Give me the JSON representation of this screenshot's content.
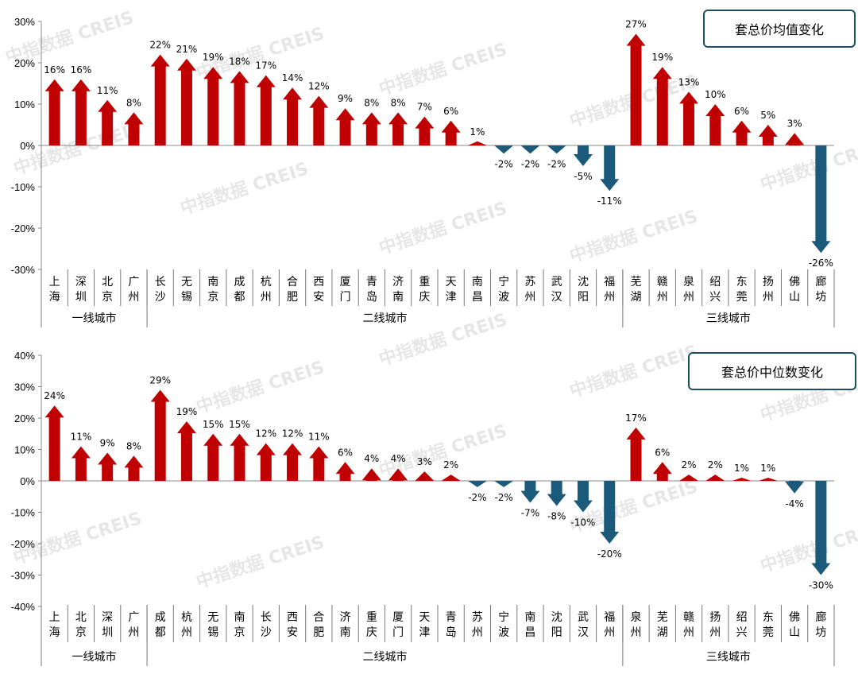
{
  "watermark": "中指数据 CREIS",
  "colors": {
    "up": "#c00000",
    "down": "#1b5a7a",
    "box_border": "#1f4e5f"
  },
  "chart_data": [
    {
      "type": "bar",
      "title": "套总价均值变化",
      "ylim": [
        -30,
        30
      ],
      "yticks": [
        "30%",
        "20%",
        "10%",
        "0%",
        "-10%",
        "-20%",
        "-30%"
      ],
      "categories": [
        "上海",
        "深圳",
        "北京",
        "广州",
        "长沙",
        "无锡",
        "南京",
        "成都",
        "杭州",
        "合肥",
        "西安",
        "厦门",
        "青岛",
        "济南",
        "重庆",
        "天津",
        "南昌",
        "宁波",
        "苏州",
        "武汉",
        "沈阳",
        "福州",
        "芜湖",
        "赣州",
        "泉州",
        "绍兴",
        "东莞",
        "扬州",
        "佛山",
        "廊坊"
      ],
      "values": [
        16,
        16,
        11,
        8,
        22,
        21,
        19,
        18,
        17,
        14,
        12,
        9,
        8,
        8,
        7,
        6,
        1,
        -2,
        -2,
        -2,
        -5,
        -11,
        27,
        19,
        13,
        10,
        6,
        5,
        3,
        -26
      ],
      "value_labels": [
        "16%",
        "16%",
        "11%",
        "8%",
        "22%",
        "21%",
        "19%",
        "18%",
        "17%",
        "14%",
        "12%",
        "9%",
        "8%",
        "8%",
        "7%",
        "6%",
        "1%",
        "-2%",
        "-2%",
        "-2%",
        "-5%",
        "-11%",
        "27%",
        "19%",
        "13%",
        "10%",
        "6%",
        "5%",
        "3%",
        "-26%"
      ],
      "groups": [
        {
          "label": "一线城市",
          "count": 4
        },
        {
          "label": "二线城市",
          "count": 18
        },
        {
          "label": "三线城市",
          "count": 8
        }
      ]
    },
    {
      "type": "bar",
      "title": "套总价中位数变化",
      "ylim": [
        -40,
        40
      ],
      "yticks": [
        "40%",
        "30%",
        "20%",
        "10%",
        "0%",
        "-10%",
        "-20%",
        "-30%",
        "-40%"
      ],
      "categories": [
        "上海",
        "北京",
        "深圳",
        "广州",
        "成都",
        "杭州",
        "无锡",
        "南京",
        "长沙",
        "西安",
        "合肥",
        "济南",
        "重庆",
        "厦门",
        "天津",
        "青岛",
        "苏州",
        "宁波",
        "南昌",
        "沈阳",
        "武汉",
        "福州",
        "泉州",
        "芜湖",
        "赣州",
        "扬州",
        "绍兴",
        "东莞",
        "佛山",
        "廊坊"
      ],
      "values": [
        24,
        11,
        9,
        8,
        29,
        19,
        15,
        15,
        12,
        12,
        11,
        6,
        4,
        4,
        3,
        2,
        -2,
        -2,
        -7,
        -8,
        -10,
        -20,
        17,
        6,
        2,
        2,
        1,
        1,
        -4,
        -30
      ],
      "value_labels": [
        "24%",
        "11%",
        "9%",
        "8%",
        "29%",
        "19%",
        "15%",
        "15%",
        "12%",
        "12%",
        "11%",
        "6%",
        "4%",
        "4%",
        "3%",
        "2%",
        "-2%",
        "-2%",
        "-7%",
        "-8%",
        "-10%",
        "-20%",
        "17%",
        "6%",
        "2%",
        "2%",
        "1%",
        "1%",
        "-4%",
        "-30%"
      ],
      "groups": [
        {
          "label": "一线城市",
          "count": 4
        },
        {
          "label": "二线城市",
          "count": 18
        },
        {
          "label": "三线城市",
          "count": 8
        }
      ]
    }
  ]
}
